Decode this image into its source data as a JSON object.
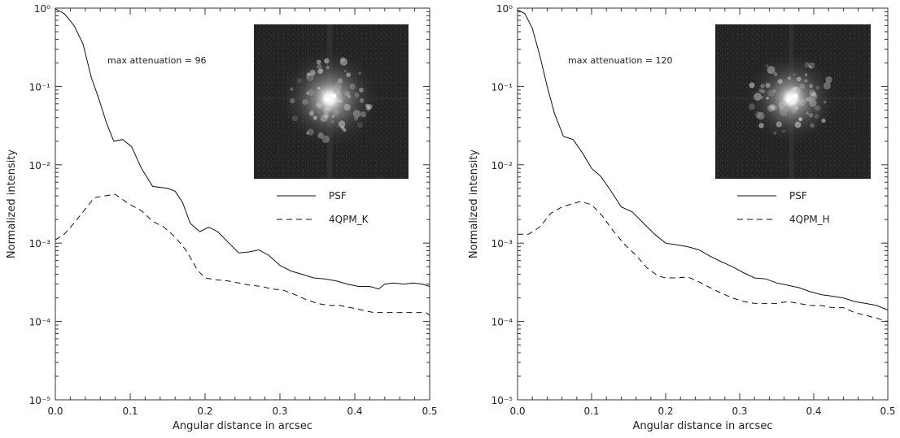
{
  "chart_data": [
    {
      "type": "line",
      "title": "",
      "xlabel": "Angular distance in arcsec",
      "ylabel": "Normalized intensity",
      "xlim": [
        0.0,
        0.5
      ],
      "ylim": [
        1e-05,
        1
      ],
      "y_scale": "log",
      "x_ticks": [
        "0.0",
        "0.1",
        "0.2",
        "0.3",
        "0.4",
        "0.5"
      ],
      "y_ticks": [
        "10⁻⁵",
        "10⁻⁴",
        "10⁻³",
        "10⁻²",
        "10⁻¹",
        "10⁰"
      ],
      "annotation": "max attenuation = 96",
      "inset_image": "coronagraphic-image-k",
      "legend_position": "right-middle",
      "series": [
        {
          "name": "PSF",
          "style": "solid",
          "x": [
            0.0,
            0.012,
            0.025,
            0.037,
            0.048,
            0.058,
            0.068,
            0.078,
            0.09,
            0.102,
            0.115,
            0.13,
            0.15,
            0.16,
            0.17,
            0.18,
            0.193,
            0.205,
            0.217,
            0.232,
            0.245,
            0.258,
            0.272,
            0.285,
            0.3,
            0.315,
            0.33,
            0.345,
            0.36,
            0.375,
            0.39,
            0.405,
            0.42,
            0.432,
            0.44,
            0.452,
            0.465,
            0.478,
            0.49,
            0.5
          ],
          "y": [
            0.98,
            0.85,
            0.6,
            0.35,
            0.13,
            0.07,
            0.035,
            0.02,
            0.021,
            0.017,
            0.009,
            0.0053,
            0.005,
            0.0046,
            0.0033,
            0.0018,
            0.0014,
            0.0016,
            0.0014,
            0.001,
            0.00075,
            0.00077,
            0.00082,
            0.0007,
            0.00052,
            0.00044,
            0.0004,
            0.00036,
            0.00035,
            0.00033,
            0.0003,
            0.00028,
            0.00028,
            0.00026,
            0.0003,
            0.00031,
            0.0003,
            0.00031,
            0.0003,
            0.00028
          ]
        },
        {
          "name": "4QPM_K",
          "style": "dashed",
          "x": [
            0.0,
            0.012,
            0.025,
            0.037,
            0.052,
            0.065,
            0.08,
            0.09,
            0.1,
            0.115,
            0.13,
            0.145,
            0.16,
            0.175,
            0.19,
            0.2,
            0.215,
            0.23,
            0.245,
            0.26,
            0.275,
            0.29,
            0.305,
            0.32,
            0.335,
            0.35,
            0.365,
            0.38,
            0.395,
            0.41,
            0.425,
            0.44,
            0.455,
            0.47,
            0.485,
            0.495,
            0.5
          ],
          "y": [
            0.0011,
            0.0013,
            0.0018,
            0.0025,
            0.0038,
            0.004,
            0.0042,
            0.0036,
            0.0031,
            0.0026,
            0.0019,
            0.0016,
            0.0012,
            0.0008,
            0.00045,
            0.00036,
            0.00034,
            0.00033,
            0.00031,
            0.00029,
            0.00028,
            0.00026,
            0.00025,
            0.00022,
            0.00019,
            0.00017,
            0.00016,
            0.00016,
            0.00015,
            0.00014,
            0.00013,
            0.00013,
            0.00013,
            0.00013,
            0.00013,
            0.00013,
            0.00012
          ]
        }
      ]
    },
    {
      "type": "line",
      "title": "",
      "xlabel": "Angular distance in arcsec",
      "ylabel": "Normalized intensity",
      "xlim": [
        0.0,
        0.5
      ],
      "ylim": [
        1e-05,
        1
      ],
      "y_scale": "log",
      "x_ticks": [
        "0.0",
        "0.1",
        "0.2",
        "0.3",
        "0.4",
        "0.5"
      ],
      "y_ticks": [
        "10⁻⁵",
        "10⁻⁴",
        "10⁻³",
        "10⁻²",
        "10⁻¹",
        "10⁰"
      ],
      "annotation": "max attenuation = 120",
      "inset_image": "coronagraphic-image-h",
      "legend_position": "right-middle",
      "series": [
        {
          "name": "PSF",
          "style": "solid",
          "x": [
            0.0,
            0.01,
            0.02,
            0.03,
            0.04,
            0.05,
            0.062,
            0.075,
            0.088,
            0.1,
            0.112,
            0.125,
            0.14,
            0.155,
            0.17,
            0.185,
            0.2,
            0.215,
            0.23,
            0.245,
            0.26,
            0.275,
            0.29,
            0.305,
            0.32,
            0.335,
            0.35,
            0.365,
            0.38,
            0.395,
            0.41,
            0.425,
            0.44,
            0.455,
            0.47,
            0.485,
            0.5
          ],
          "y": [
            0.95,
            0.85,
            0.55,
            0.25,
            0.1,
            0.045,
            0.023,
            0.021,
            0.014,
            0.009,
            0.0072,
            0.0048,
            0.0029,
            0.0025,
            0.0018,
            0.0013,
            0.001,
            0.00095,
            0.0009,
            0.00082,
            0.00068,
            0.00058,
            0.0005,
            0.00042,
            0.00036,
            0.00035,
            0.00031,
            0.00029,
            0.00027,
            0.00024,
            0.00022,
            0.00021,
            0.0002,
            0.00018,
            0.00017,
            0.00016,
            0.00014
          ]
        },
        {
          "name": "4QPM_H",
          "style": "dashed",
          "x": [
            0.0,
            0.015,
            0.03,
            0.045,
            0.06,
            0.075,
            0.085,
            0.1,
            0.115,
            0.13,
            0.145,
            0.16,
            0.175,
            0.19,
            0.2,
            0.215,
            0.23,
            0.245,
            0.26,
            0.275,
            0.29,
            0.305,
            0.32,
            0.335,
            0.35,
            0.365,
            0.38,
            0.395,
            0.41,
            0.425,
            0.44,
            0.455,
            0.47,
            0.485,
            0.5
          ],
          "y": [
            0.0013,
            0.0013,
            0.0016,
            0.0024,
            0.0029,
            0.0032,
            0.0034,
            0.0031,
            0.0022,
            0.0014,
            0.00095,
            0.0007,
            0.00048,
            0.00038,
            0.00036,
            0.00036,
            0.00037,
            0.00032,
            0.00027,
            0.00023,
            0.0002,
            0.00018,
            0.00017,
            0.00017,
            0.00017,
            0.00018,
            0.00017,
            0.00016,
            0.00016,
            0.00015,
            0.00015,
            0.00013,
            0.00012,
            0.00011,
            0.0001
          ]
        }
      ]
    }
  ]
}
